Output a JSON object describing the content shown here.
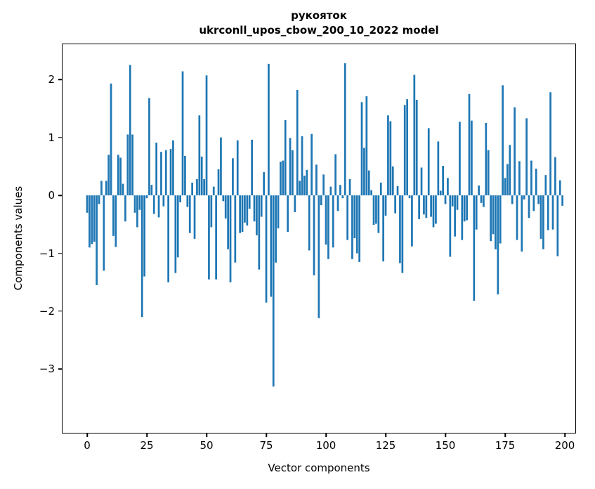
{
  "chart_data": {
    "type": "bar",
    "title": "рукояток",
    "subtitle": "ukrconll_upos_cbow_200_10_2022 model",
    "xlabel": "Vector components",
    "ylabel": "Components values",
    "bar_color": "#1f77b4",
    "background": "#ffffff",
    "grid": false,
    "legend": null,
    "x_ticks": [
      0,
      25,
      50,
      75,
      100,
      125,
      150,
      175,
      200
    ],
    "y_ticks": [
      2,
      1,
      0,
      -1,
      -2,
      -3
    ],
    "y_tick_labels": [
      "2",
      "1",
      "0",
      "−1",
      "−2",
      "−3"
    ],
    "xlim": [
      -10.6,
      204.7
    ],
    "ylim": [
      -4.11,
      2.62
    ],
    "n_components": 200,
    "values": [
      -0.3,
      -0.9,
      -0.84,
      -0.8,
      -1.55,
      -0.15,
      0.25,
      -1.3,
      0.25,
      0.7,
      1.93,
      -0.7,
      -0.89,
      0.7,
      0.65,
      0.2,
      -0.45,
      1.05,
      2.25,
      1.05,
      -0.3,
      -0.55,
      -0.25,
      -2.1,
      -1.4,
      -0.05,
      1.68,
      0.18,
      -0.32,
      0.91,
      -0.38,
      0.75,
      -0.19,
      0.78,
      -1.5,
      0.8,
      0.95,
      -1.34,
      -1.07,
      -0.12,
      2.14,
      0.68,
      -0.2,
      -0.65,
      0.22,
      -0.75,
      0.28,
      1.38,
      0.67,
      0.28,
      2.07,
      -1.45,
      -0.55,
      0.15,
      -1.45,
      0.45,
      1.0,
      -0.1,
      -0.4,
      -0.93,
      -1.5,
      0.64,
      -1.16,
      0.95,
      -0.65,
      -0.63,
      -0.47,
      -0.52,
      -0.23,
      0.96,
      -0.45,
      -0.69,
      -1.28,
      -0.37,
      0.4,
      -1.85,
      2.27,
      -1.75,
      -3.3,
      -1.16,
      -0.57,
      0.58,
      0.6,
      1.3,
      -0.63,
      0.99,
      0.78,
      -0.29,
      1.82,
      0.25,
      1.02,
      0.34,
      0.44,
      -0.95,
      1.06,
      -1.38,
      0.53,
      -2.12,
      -0.17,
      0.36,
      -0.85,
      -1.1,
      0.15,
      -0.9,
      0.71,
      -0.27,
      0.18,
      -0.05,
      2.28,
      -0.77,
      0.28,
      -1.1,
      -0.74,
      -1.0,
      -1.15,
      1.61,
      0.82,
      1.71,
      0.43,
      0.09,
      -0.51,
      -0.49,
      -0.65,
      0.22,
      -1.14,
      -0.35,
      1.38,
      1.28,
      0.5,
      -0.31,
      0.16,
      -1.17,
      -1.34,
      1.56,
      1.66,
      -0.05,
      -0.88,
      2.08,
      1.65,
      -0.41,
      0.48,
      -0.33,
      -0.39,
      1.16,
      -0.37,
      -0.55,
      -0.49,
      0.93,
      0.08,
      0.51,
      -0.15,
      0.3,
      -1.06,
      -0.19,
      -0.71,
      -0.25,
      1.27,
      -0.77,
      -0.45,
      -0.43,
      1.75,
      1.29,
      -1.82,
      -0.59,
      0.17,
      -0.13,
      -0.2,
      1.25,
      0.78,
      -0.79,
      -0.67,
      -0.93,
      -1.71,
      -0.83,
      1.9,
      0.3,
      0.54,
      0.87,
      -0.15,
      1.52,
      -0.77,
      0.59,
      -0.97,
      -0.07,
      1.33,
      -0.39,
      0.6,
      -0.27,
      0.46,
      -0.15,
      -0.75,
      -0.93,
      0.35,
      -0.6,
      1.78,
      -0.59,
      0.66,
      -1.05,
      0.26,
      -0.18
    ]
  }
}
